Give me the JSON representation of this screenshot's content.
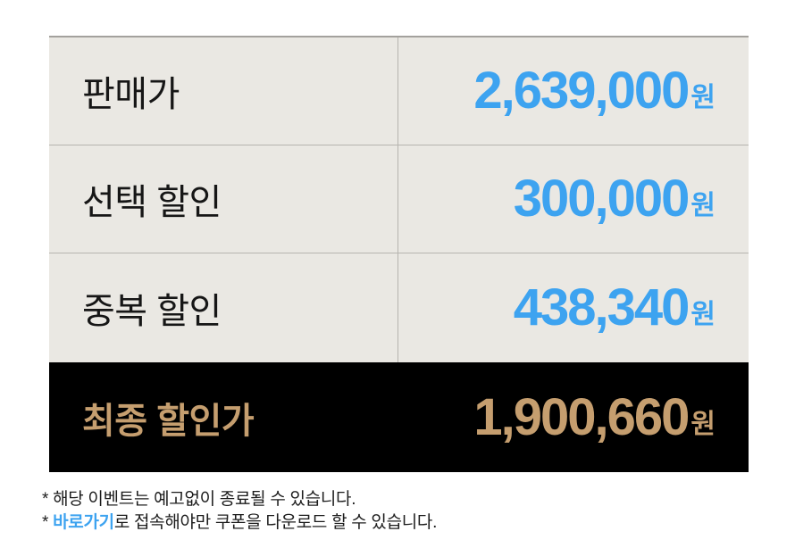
{
  "table": {
    "rows": [
      {
        "label": "판매가",
        "amount": "2,639,000",
        "currency": "원"
      },
      {
        "label": "선택 할인",
        "amount": "300,000",
        "currency": "원"
      },
      {
        "label": "중복 할인",
        "amount": "438,340",
        "currency": "원"
      }
    ],
    "final_row": {
      "label": "최종 할인가",
      "amount": "1,900,660",
      "currency": "원"
    }
  },
  "footnotes": {
    "line1": "* 해당 이벤트는 예고없이 종료될 수 있습니다.",
    "line2_prefix": "* ",
    "line2_link": "바로가기",
    "line2_suffix": "로 접속해야만 쿠폰을 다운로드 할 수 있습니다."
  },
  "colors": {
    "accent_blue": "#3da3f0",
    "gold": "#c59e6f",
    "row_background": "#eae8e3",
    "final_row_background": "#000000"
  }
}
